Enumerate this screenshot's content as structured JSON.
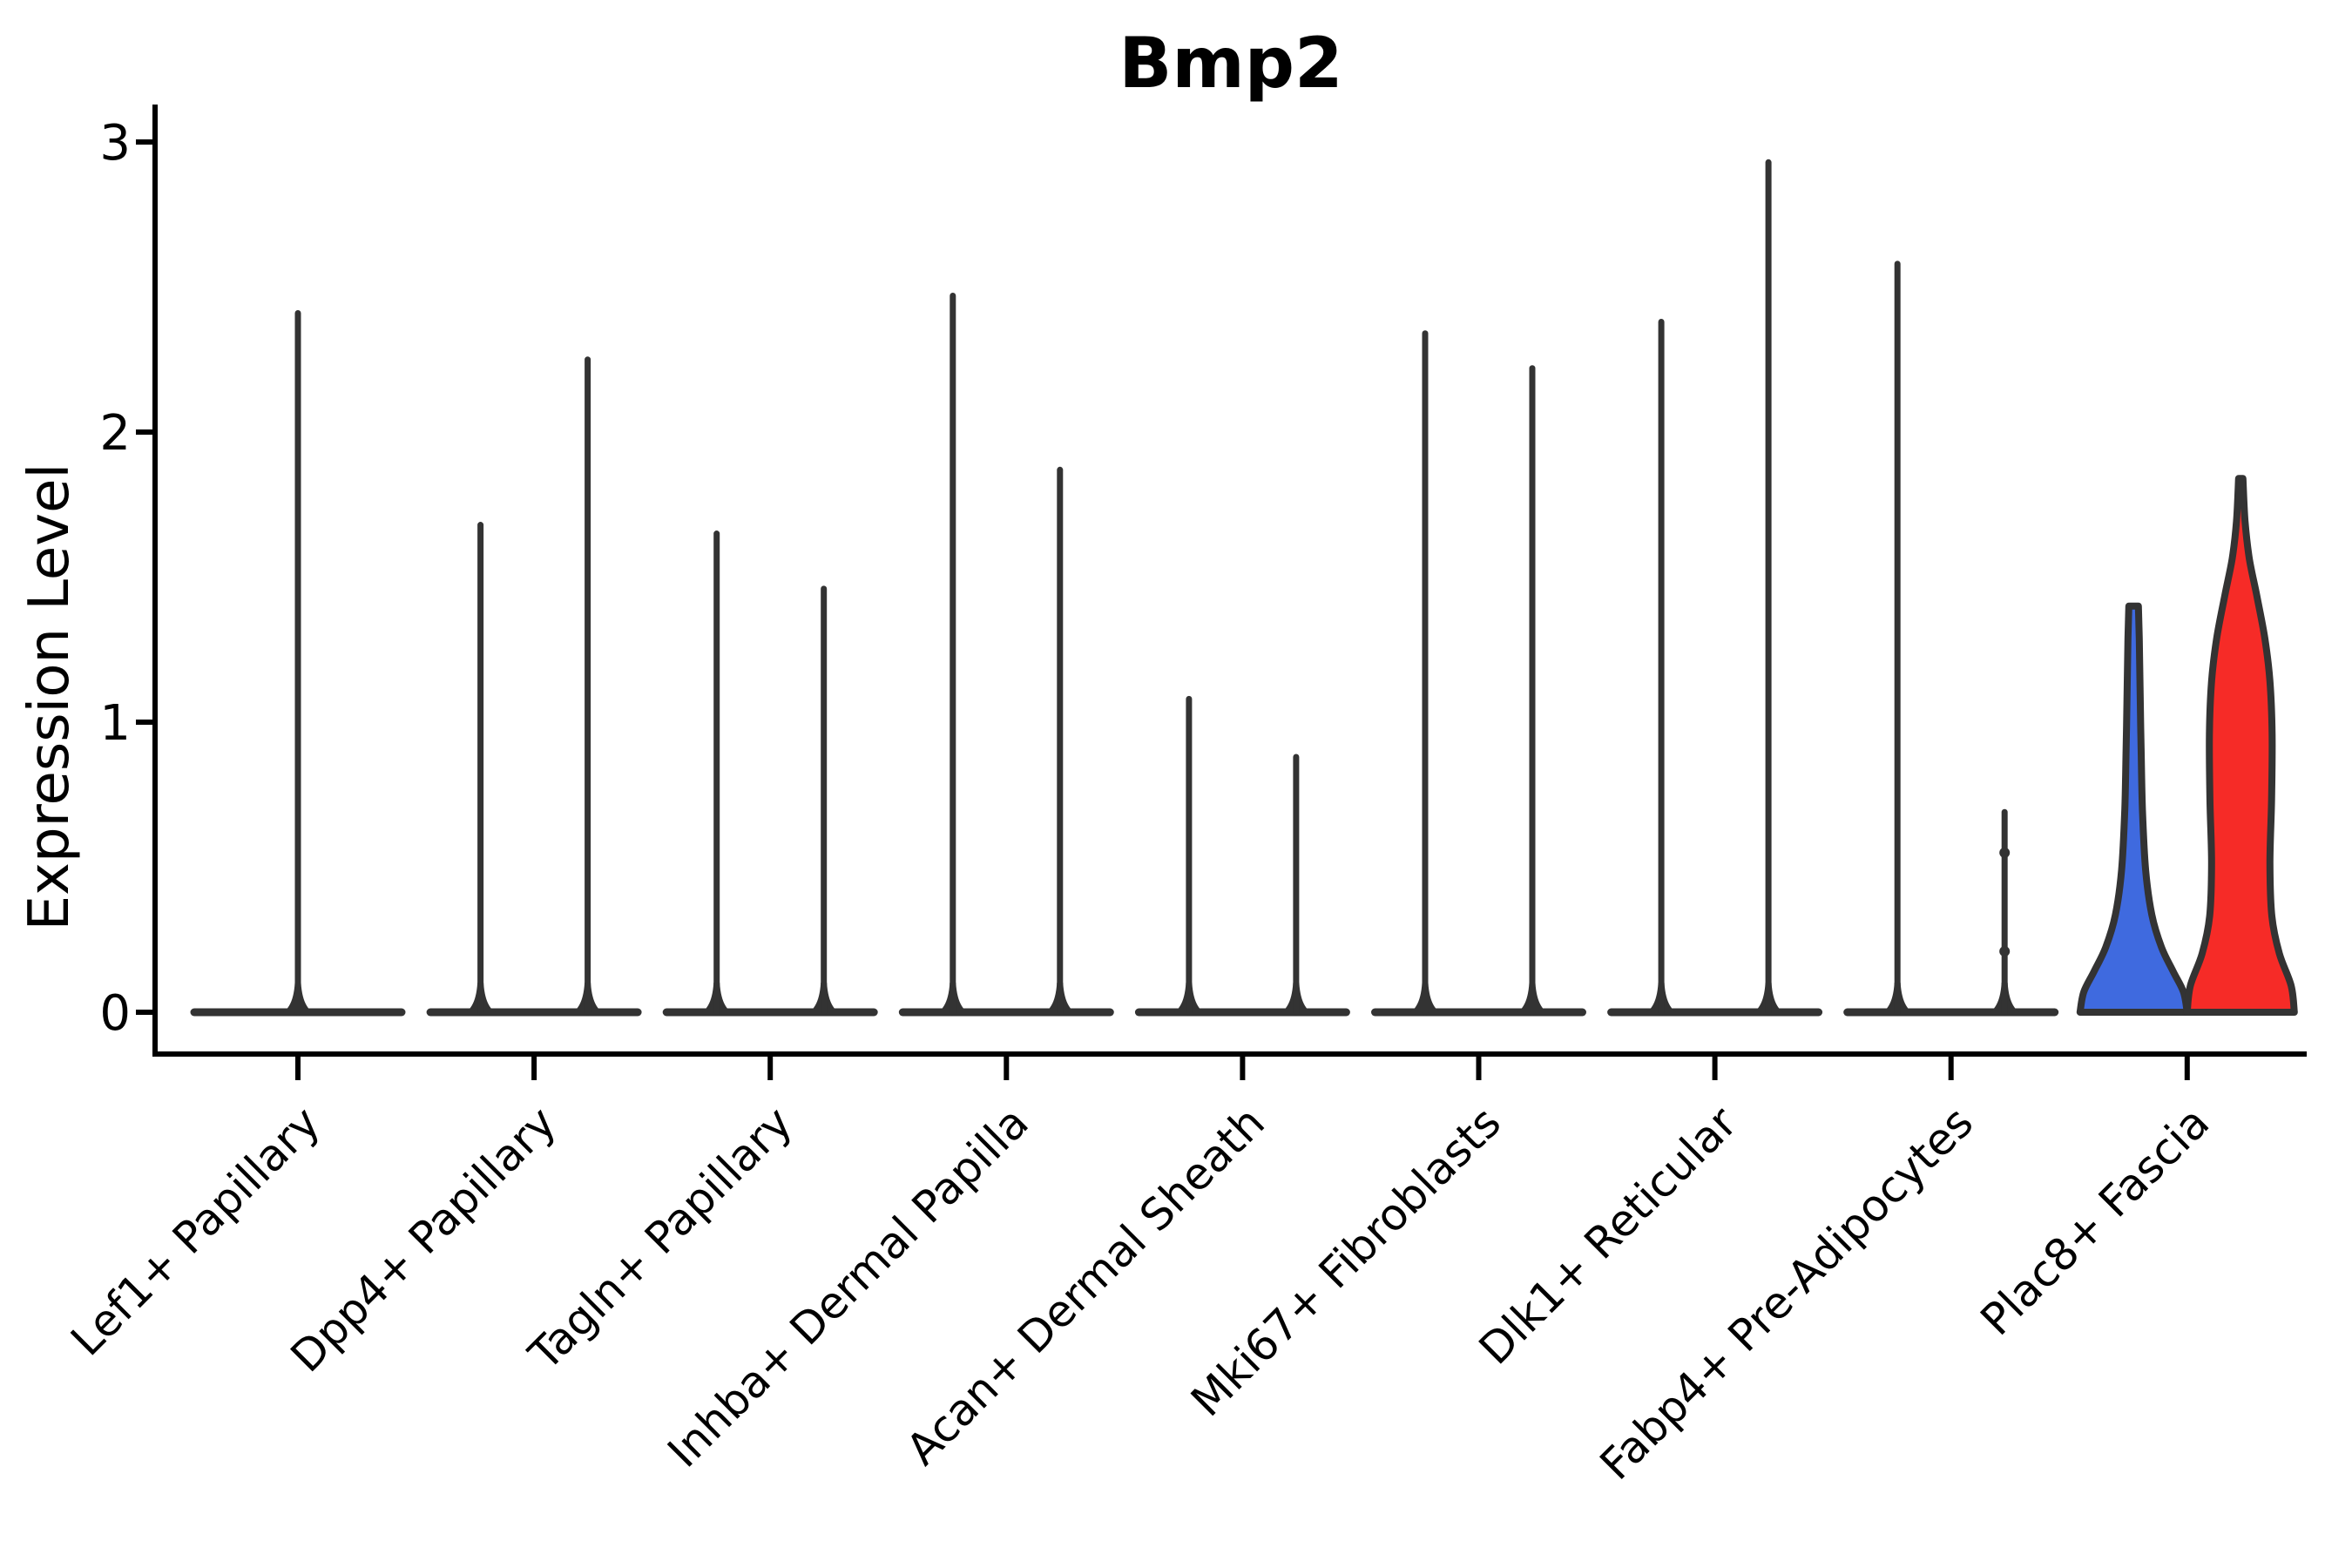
{
  "chart_data": {
    "type": "violin",
    "title": "Bmp2",
    "xlabel": "",
    "ylabel": "Expression Level",
    "yticks": [
      0,
      1,
      2,
      3
    ],
    "ylim": [
      -0.14,
      3.13
    ],
    "grid": false,
    "legend": null,
    "categories": [
      "Lef1+ Papillary",
      "Dpp4+ Papillary",
      "Tagln+ Papillary",
      "Inhba+ Dermal Papilla",
      "Acan+ Dermal Sheath",
      "Mki67+ Fibroblasts",
      "Dlk1+ Reticular",
      "Fabp4+ Pre-Adipocytes",
      "Plac8+ Fascia"
    ],
    "violins": [
      {
        "category_index": 0,
        "slot": "center",
        "max": 2.41,
        "style": "spike"
      },
      {
        "category_index": 1,
        "slot": "left",
        "max": 1.68,
        "style": "spike"
      },
      {
        "category_index": 1,
        "slot": "right",
        "max": 2.25,
        "style": "spike"
      },
      {
        "category_index": 2,
        "slot": "left",
        "max": 1.65,
        "style": "spike"
      },
      {
        "category_index": 2,
        "slot": "right",
        "max": 1.46,
        "style": "spike"
      },
      {
        "category_index": 3,
        "slot": "left",
        "max": 2.47,
        "style": "spike"
      },
      {
        "category_index": 3,
        "slot": "right",
        "max": 1.87,
        "style": "spike"
      },
      {
        "category_index": 4,
        "slot": "left",
        "max": 1.08,
        "style": "spike"
      },
      {
        "category_index": 4,
        "slot": "right",
        "max": 0.88,
        "style": "spike"
      },
      {
        "category_index": 5,
        "slot": "left",
        "max": 2.34,
        "style": "spike"
      },
      {
        "category_index": 5,
        "slot": "right",
        "max": 2.22,
        "style": "spike"
      },
      {
        "category_index": 6,
        "slot": "left",
        "max": 2.38,
        "style": "spike"
      },
      {
        "category_index": 6,
        "slot": "right",
        "max": 2.93,
        "style": "spike"
      },
      {
        "category_index": 7,
        "slot": "left",
        "max": 2.58,
        "style": "spike"
      },
      {
        "category_index": 7,
        "slot": "right",
        "max": 0.69,
        "style": "spike",
        "points": [
          0.55,
          0.21
        ]
      },
      {
        "category_index": 8,
        "slot": "left",
        "max": 1.4,
        "style": "filled",
        "fill": "#3F6ADF",
        "profile": [
          [
            0,
            1.0
          ],
          [
            0.05,
            0.93
          ],
          [
            0.1,
            0.74
          ],
          [
            0.16,
            0.52
          ],
          [
            0.24,
            0.34
          ],
          [
            0.35,
            0.225
          ],
          [
            0.5,
            0.165
          ],
          [
            0.65,
            0.14
          ],
          [
            0.8,
            0.12
          ],
          [
            0.92,
            0.105
          ],
          [
            1,
            0.09
          ]
        ]
      },
      {
        "category_index": 8,
        "slot": "right",
        "max": 1.84,
        "style": "filled",
        "fill": "#F62B27",
        "profile": [
          [
            0,
            1.0
          ],
          [
            0.05,
            0.94
          ],
          [
            0.11,
            0.72
          ],
          [
            0.18,
            0.58
          ],
          [
            0.28,
            0.545
          ],
          [
            0.4,
            0.575
          ],
          [
            0.52,
            0.585
          ],
          [
            0.62,
            0.545
          ],
          [
            0.7,
            0.45
          ],
          [
            0.78,
            0.3
          ],
          [
            0.85,
            0.16
          ],
          [
            0.92,
            0.08
          ],
          [
            1,
            0.04
          ]
        ]
      }
    ],
    "colors": {
      "violin_stroke": "#333333",
      "axis": "#000000",
      "group_blue": "#3F6ADF",
      "group_red": "#F62B27"
    }
  }
}
